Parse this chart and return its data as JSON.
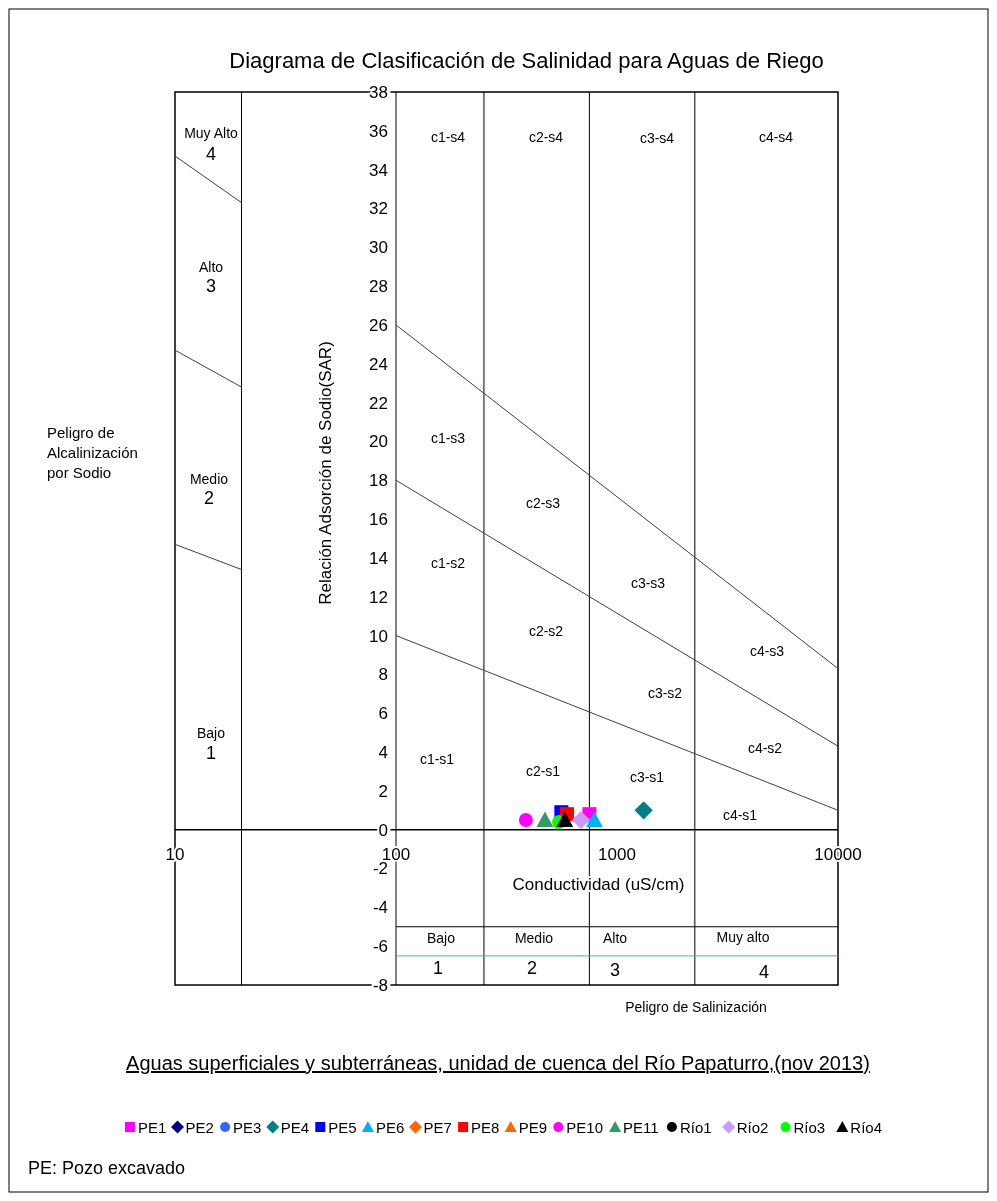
{
  "chart_data": {
    "type": "scatter",
    "title": "Diagrama de Clasificación de Salinidad para Aguas de Riego",
    "xlabel": "Conductividad (uS/cm)",
    "ylabel": "Relación Adsorción de Sodio(SAR)",
    "log": "x",
    "xlim": [
      10,
      10000
    ],
    "xticks": [
      10,
      100,
      1000,
      10000
    ],
    "ylim": [
      -8,
      38
    ],
    "yticks": [
      -8,
      -6,
      -4,
      -2,
      0,
      2,
      4,
      6,
      8,
      10,
      12,
      14,
      16,
      18,
      20,
      22,
      24,
      26,
      28,
      30,
      32,
      34,
      36,
      38
    ],
    "grid": false,
    "legend": "bottom",
    "ref_lines": [
      {
        "axis": "x",
        "value": 20,
        "color": "#000000"
      },
      {
        "axis": "x",
        "value": 100,
        "color": "#000000"
      },
      {
        "axis": "x",
        "value": 250,
        "color": "#000000"
      },
      {
        "axis": "x",
        "value": 750,
        "color": "#000000"
      },
      {
        "axis": "x",
        "value": 2250,
        "color": "#000000"
      }
    ],
    "series": [
      {
        "type": "line",
        "color": "#404040",
        "x": [
          100,
          10000
        ],
        "values": [
          26,
          8.3
        ]
      },
      {
        "type": "line",
        "color": "#404040",
        "x": [
          100,
          10000
        ],
        "values": [
          18,
          4.3
        ]
      },
      {
        "type": "line",
        "color": "#404040",
        "x": [
          100,
          10000
        ],
        "values": [
          10,
          1
        ]
      },
      {
        "type": "line",
        "color": "#404040",
        "x": [
          10,
          20
        ],
        "values": [
          34.7,
          32.3
        ]
      },
      {
        "type": "line",
        "color": "#404040",
        "x": [
          10,
          20
        ],
        "values": [
          24.7,
          22.8
        ]
      },
      {
        "type": "line",
        "color": "#404040",
        "x": [
          10,
          20
        ],
        "values": [
          14.7,
          13.4
        ]
      },
      {
        "type": "line",
        "color": "#000000",
        "x": [
          100,
          10000
        ],
        "values": [
          -5,
          -5
        ]
      },
      {
        "type": "line",
        "color": "#4bacc6",
        "x": [
          100,
          10000
        ],
        "values": [
          -6.5,
          -6.5
        ]
      },
      {
        "name": "PE1",
        "marker": "square",
        "color": "#ff00ff",
        "x": [
          750
        ],
        "values": [
          0.8
        ]
      },
      {
        "name": "PE2",
        "marker": "diamond",
        "color": "#000080",
        "values": [
          null
        ]
      },
      {
        "name": "PE3",
        "marker": "circle",
        "color": "#3366ff",
        "values": [
          null
        ]
      },
      {
        "name": "PE4",
        "marker": "diamond",
        "color": "#008080",
        "x": [
          1320
        ],
        "values": [
          1
        ]
      },
      {
        "name": "PE5",
        "marker": "square",
        "color": "#0000ff",
        "x": [
          560
        ],
        "values": [
          0.9
        ]
      },
      {
        "name": "PE6",
        "marker": "triangle",
        "color": "#00b0f0",
        "x": [
          790
        ],
        "values": [
          0.5
        ]
      },
      {
        "name": "PE7",
        "marker": "diamond",
        "color": "#ff6600",
        "values": [
          null
        ]
      },
      {
        "name": "PE8",
        "marker": "square",
        "color": "#ff0000",
        "x": [
          594
        ],
        "values": [
          0.8
        ]
      },
      {
        "name": "PE9",
        "marker": "triangle",
        "color": "#ff6600",
        "values": [
          null
        ]
      },
      {
        "name": "PE10",
        "marker": "circle",
        "color": "#ff00ff",
        "x": [
          387
        ],
        "values": [
          0.5
        ]
      },
      {
        "name": "PE11",
        "marker": "triangle",
        "color": "#339966",
        "x": [
          472
        ],
        "values": [
          0.5
        ]
      },
      {
        "name": "Río1",
        "marker": "circle",
        "color": "#000000",
        "values": [
          null
        ]
      },
      {
        "name": "Río2",
        "marker": "diamond",
        "color": "#cc99ff",
        "x": [
          687
        ],
        "values": [
          0.5
        ]
      },
      {
        "name": "Río3",
        "marker": "circle",
        "color": "#00ff00",
        "x": [
          547
        ],
        "values": [
          0.4
        ]
      },
      {
        "name": "Río4",
        "marker": "triangle",
        "color": "#000000",
        "x": [
          580
        ],
        "values": [
          0.5
        ]
      }
    ],
    "annotations": [
      "Peligro de Alcalinización por Sodio",
      "Peligro de Salinización",
      "Aguas superficiales y subterráneas, unidad de cuenca del Río Papaturro,(nov 2013)",
      "PE: Pozo excavado",
      "c1-s4",
      "c2-s4",
      "c3-s4",
      "c4-s4",
      "c1-s3",
      "c2-s3",
      "c1-s2",
      "c3-s3",
      "c2-s2",
      "c4-s3",
      "c3-s2",
      "c1-s1",
      "c4-s2",
      "c2-s1",
      "c3-s1",
      "c4-s1",
      "Muy Alto",
      "4",
      "Alto",
      "3",
      "Medio",
      "2",
      "Bajo",
      "1",
      "Bajo",
      "Medio",
      "Alto",
      "Muy alto",
      "1",
      "2",
      "3",
      "4"
    ]
  }
}
